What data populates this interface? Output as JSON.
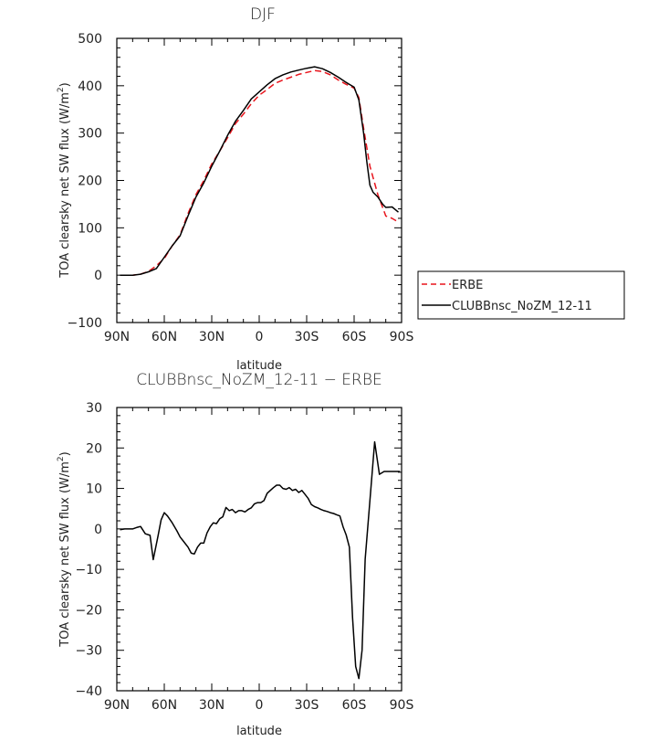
{
  "chart_data": [
    {
      "type": "line",
      "title": "DJF",
      "xlabel": "latitude",
      "ylabel": "TOA clearsky net SW flux (W/m",
      "ylabel_sup": "2",
      "ylabel_end": ")",
      "xlim": [
        -90,
        90
      ],
      "ylim": [
        -100,
        500
      ],
      "x_ticks": [
        -90,
        -60,
        -30,
        0,
        30,
        60,
        90
      ],
      "x_tick_labels": [
        "90N",
        "60N",
        "30N",
        "0",
        "30S",
        "60S",
        "90S"
      ],
      "y_ticks": [
        -100,
        0,
        100,
        200,
        300,
        400,
        500
      ],
      "y_tick_labels": [
        "−100",
        "0",
        "100",
        "200",
        "300",
        "400",
        "500"
      ],
      "legend_placement": "right",
      "series": [
        {
          "name": "ERBE",
          "color": "#e8141c",
          "style": "dashed",
          "x": [
            -88,
            -85,
            -80,
            -75,
            -70,
            -65,
            -60,
            -55,
            -50,
            -45,
            -40,
            -35,
            -30,
            -25,
            -20,
            -15,
            -10,
            -5,
            0,
            5,
            10,
            15,
            20,
            25,
            30,
            35,
            40,
            45,
            50,
            55,
            60,
            63,
            66,
            70,
            75,
            80,
            84,
            88
          ],
          "y": [
            0,
            0,
            0,
            2,
            8,
            20,
            35,
            62,
            85,
            130,
            170,
            200,
            235,
            262,
            290,
            320,
            340,
            362,
            380,
            392,
            405,
            412,
            418,
            424,
            428,
            432,
            430,
            423,
            412,
            403,
            395,
            375,
            310,
            230,
            170,
            125,
            120,
            112
          ]
        },
        {
          "name": "CLUBBnsc_NoZM_12-11",
          "color": "#000000",
          "style": "solid",
          "x": [
            -88,
            -85,
            -80,
            -75,
            -70,
            -65,
            -60,
            -55,
            -50,
            -45,
            -40,
            -35,
            -30,
            -25,
            -20,
            -15,
            -10,
            -5,
            0,
            5,
            10,
            15,
            20,
            25,
            30,
            35,
            40,
            45,
            50,
            55,
            60,
            63,
            66,
            68,
            70,
            72,
            75,
            78,
            80,
            84,
            88
          ],
          "y": [
            0,
            0,
            0,
            2,
            7,
            14,
            38,
            62,
            83,
            125,
            165,
            195,
            230,
            262,
            295,
            325,
            348,
            372,
            387,
            402,
            415,
            423,
            429,
            433,
            437,
            440,
            436,
            428,
            418,
            407,
            397,
            370,
            300,
            240,
            190,
            175,
            165,
            150,
            143,
            144,
            133
          ]
        }
      ]
    },
    {
      "type": "line",
      "title": "CLUBBnsc_NoZM_12-11 − ERBE",
      "xlabel": "latitude",
      "ylabel": "TOA clearsky net SW flux (W/m",
      "ylabel_sup": "2",
      "ylabel_end": ")",
      "xlim": [
        -90,
        90
      ],
      "ylim": [
        -40,
        30
      ],
      "x_ticks": [
        -90,
        -60,
        -30,
        0,
        30,
        60,
        90
      ],
      "x_tick_labels": [
        "90N",
        "60N",
        "30N",
        "0",
        "30S",
        "60S",
        "90S"
      ],
      "y_ticks": [
        -40,
        -30,
        -20,
        -10,
        0,
        10,
        20,
        30
      ],
      "y_tick_labels": [
        "−40",
        "−30",
        "−20",
        "−10",
        "0",
        "10",
        "20",
        "30"
      ],
      "series": [
        {
          "color": "#000000",
          "style": "solid",
          "x": [
            -88,
            -85,
            -82,
            -80,
            -77,
            -75,
            -72,
            -69,
            -67,
            -64,
            -62,
            -60,
            -58,
            -55,
            -52,
            -50,
            -48,
            -45,
            -43,
            -41,
            -39,
            -37,
            -35,
            -33,
            -31,
            -29,
            -27,
            -25,
            -23,
            -21,
            -19,
            -17,
            -15,
            -13,
            -11,
            -9,
            -7,
            -5,
            -3,
            -1,
            1,
            3,
            5,
            7,
            9,
            11,
            13,
            15,
            17,
            19,
            21,
            23,
            25,
            27,
            29,
            31,
            33,
            35,
            37,
            39,
            41,
            43,
            45,
            47,
            49,
            51,
            53,
            55,
            57,
            59,
            61,
            63,
            65,
            67,
            70,
            73,
            76,
            79,
            81,
            83,
            85,
            87,
            89
          ],
          "y": [
            -0.2,
            0,
            0,
            0,
            0.4,
            0.6,
            -1.2,
            -1.6,
            -7.6,
            -1.8,
            2.2,
            4,
            3.2,
            1.5,
            -0.5,
            -2,
            -3,
            -4.5,
            -6,
            -6.2,
            -4.5,
            -3.5,
            -3.5,
            -1,
            0.5,
            1.5,
            1.3,
            2.5,
            3,
            5.3,
            4.5,
            4.8,
            4,
            4.5,
            4.5,
            4.2,
            4.8,
            5.2,
            6.2,
            6.5,
            6.5,
            7,
            8.8,
            9.5,
            10.2,
            10.8,
            10.8,
            10,
            9.8,
            10.2,
            9.5,
            9.8,
            9,
            9.5,
            8.5,
            7.5,
            6,
            5.5,
            5.2,
            4.8,
            4.5,
            4.3,
            4,
            3.8,
            3.5,
            3.2,
            0.5,
            -1.5,
            -4.5,
            -22,
            -34,
            -37,
            -30,
            -7.5,
            7,
            21.5,
            13.5,
            14.2,
            14.2,
            14.2,
            14.2,
            14.2,
            14.2
          ]
        }
      ]
    }
  ]
}
